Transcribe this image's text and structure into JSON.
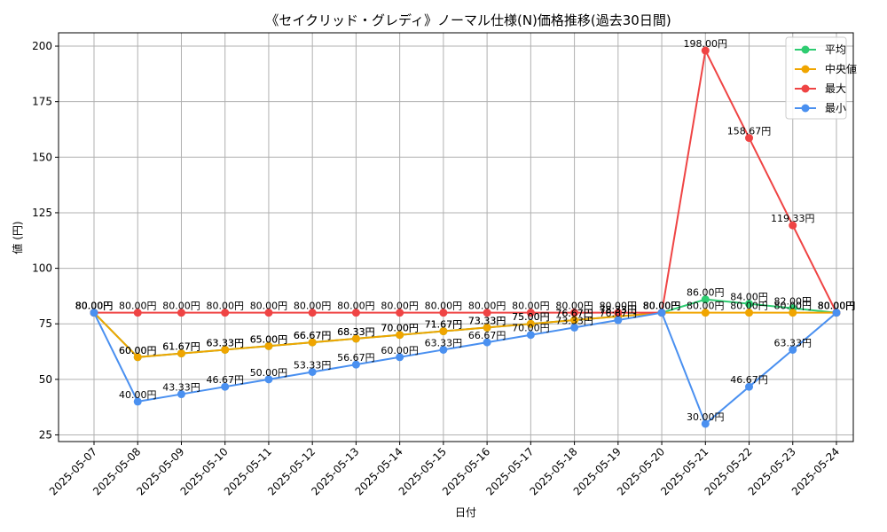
{
  "chart_data": {
    "type": "line",
    "title": "《セイクリッド・グレディ》ノーマル仕様(N)価格推移(過去30日間)",
    "xlabel": "日付",
    "ylabel": "値 (円)",
    "unit_suffix": "円",
    "categories": [
      "2025-05-07",
      "2025-05-08",
      "2025-05-09",
      "2025-05-10",
      "2025-05-11",
      "2025-05-12",
      "2025-05-13",
      "2025-05-14",
      "2025-05-15",
      "2025-05-16",
      "2025-05-17",
      "2025-05-18",
      "2025-05-19",
      "2025-05-20",
      "2025-05-21",
      "2025-05-22",
      "2025-05-23",
      "2025-05-24"
    ],
    "ylim": [
      22,
      206
    ],
    "yticks": [
      25,
      50,
      75,
      100,
      125,
      150,
      175,
      200
    ],
    "grid": true,
    "legend_position": "top-right",
    "series": [
      {
        "name": "平均",
        "color": "#2ecc71",
        "values": [
          80.0,
          60.0,
          61.67,
          63.33,
          65.0,
          66.67,
          68.33,
          70.0,
          71.67,
          73.33,
          75.0,
          76.67,
          78.33,
          80.0,
          86.0,
          84.0,
          82.0,
          80.0
        ]
      },
      {
        "name": "中央値",
        "color": "#f0a500",
        "values": [
          80.0,
          60.0,
          61.67,
          63.33,
          65.0,
          66.67,
          68.33,
          70.0,
          71.67,
          73.33,
          75.0,
          76.67,
          78.33,
          80.0,
          80.0,
          80.0,
          80.0,
          80.0
        ]
      },
      {
        "name": "最大",
        "color": "#ef4444",
        "values": [
          80.0,
          80.0,
          80.0,
          80.0,
          80.0,
          80.0,
          80.0,
          80.0,
          80.0,
          80.0,
          80.0,
          80.0,
          80.0,
          80.0,
          198.0,
          158.67,
          119.33,
          80.0
        ]
      },
      {
        "name": "最小",
        "color": "#4a90f0",
        "values": [
          80.0,
          40.0,
          43.33,
          46.67,
          50.0,
          53.33,
          56.67,
          60.0,
          63.33,
          66.67,
          70.0,
          73.33,
          76.67,
          80.0,
          30.0,
          46.67,
          63.33,
          80.0
        ]
      }
    ]
  }
}
